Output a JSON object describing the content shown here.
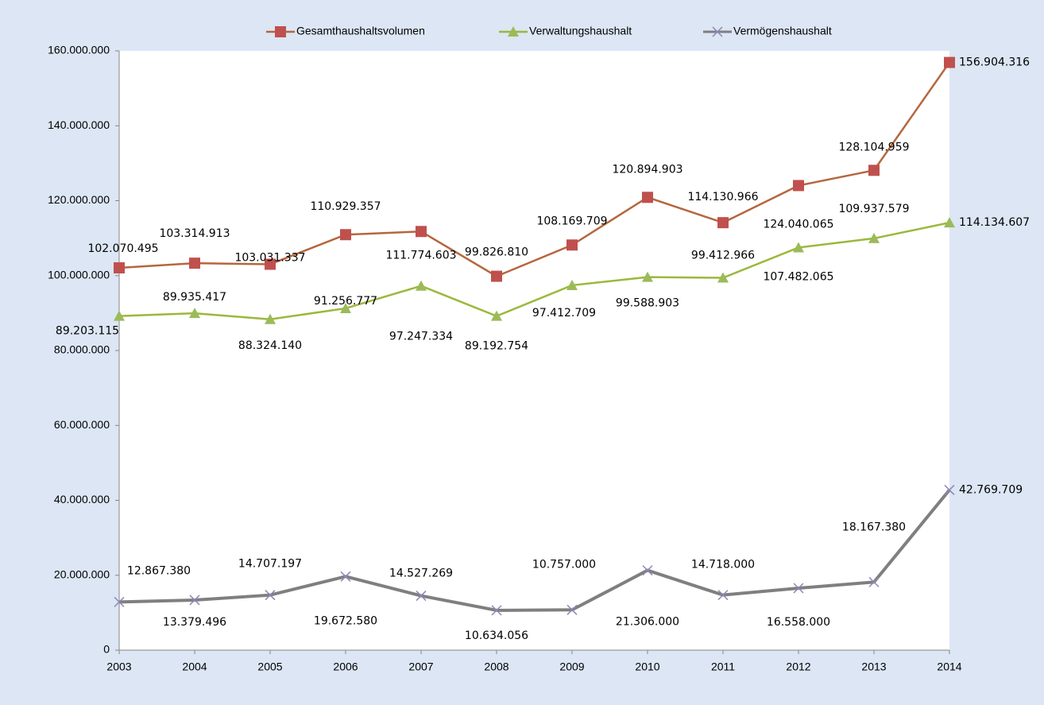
{
  "chart_data": {
    "type": "line",
    "categories": [
      "2003",
      "2004",
      "2005",
      "2006",
      "2007",
      "2008",
      "2009",
      "2010",
      "2011",
      "2012",
      "2013",
      "2014"
    ],
    "series": [
      {
        "name": "Gesamthaushaltsvolumen",
        "color": "#c0504d",
        "line_color": "#b5663e",
        "marker": "square",
        "values": [
          102070495,
          103314913,
          103031337,
          110929357,
          111774603,
          99826810,
          108169709,
          120894903,
          114130966,
          124040065,
          128104959,
          156904316
        ],
        "value_labels": [
          "102.070.495",
          "103.314.913",
          "103.031.337",
          "110.929.357",
          "111.774.603",
          "99.826.810",
          "108.169.709",
          "120.894.903",
          "114.130.966",
          "124.040.065",
          "128.104.959",
          "156.904.316"
        ]
      },
      {
        "name": "Verwaltungshaushalt",
        "color": "#9bbb59",
        "line_color": "#9bb83b",
        "marker": "triangle",
        "values": [
          89203115,
          89935417,
          88324140,
          91256777,
          97247334,
          89192754,
          97412709,
          99588903,
          99412966,
          107482065,
          109937579,
          114134607
        ],
        "value_labels": [
          "89.203.115",
          "89.935.417",
          "88.324.140",
          "91.256.777",
          "97.247.334",
          "89.192.754",
          "97.412.709",
          "99.588.903",
          "99.412.966",
          "107.482.065",
          "109.937.579",
          "114.134.607"
        ]
      },
      {
        "name": "Vermögenshaushalt",
        "color": "#8e86b8",
        "line_color": "#7f7f7f",
        "marker": "x",
        "values": [
          12867380,
          13379496,
          14707197,
          19672580,
          14527269,
          10634056,
          10757000,
          21306000,
          14718000,
          16558000,
          18167380,
          42769709
        ],
        "value_labels": [
          "12.867.380",
          "13.379.496",
          "14.707.197",
          "19.672.580",
          "14.527.269",
          "10.634.056",
          "10.757.000",
          "21.306.000",
          "14.718.000",
          "16.558.000",
          "18.167.380",
          "42.769.709"
        ]
      }
    ],
    "ylim": [
      0,
      160000000
    ],
    "yticks": [
      0,
      {
        "value": 20000000,
        "label": "20.000.000"
      },
      {
        "value": 40000000,
        "label": "40.000.000"
      },
      {
        "value": 60000000,
        "label": "60.000.000"
      },
      {
        "value": 80000000,
        "label": "80.000.000"
      },
      {
        "value": 100000000,
        "label": "100.000.000"
      },
      {
        "value": 120000000,
        "label": "120.000.000"
      },
      {
        "value": 140000000,
        "label": "140.000.000"
      },
      {
        "value": 160000000,
        "label": "160.000.000"
      }
    ],
    "grid": false,
    "legend": "top"
  }
}
